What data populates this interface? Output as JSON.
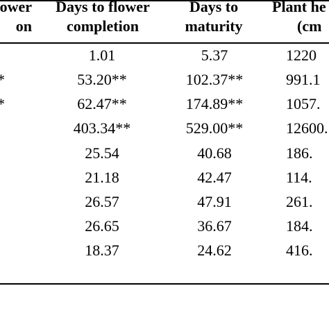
{
  "table": {
    "headers": [
      {
        "lines": [
          "ower",
          "on"
        ]
      },
      {
        "lines": [
          "Days to flower",
          "completion"
        ]
      },
      {
        "lines": [
          "Days to",
          "maturity"
        ]
      },
      {
        "lines": [
          "Plant he",
          "(cm"
        ]
      }
    ],
    "rows": [
      {
        "c0": "",
        "c1": "1.01",
        "c2": "5.37",
        "c3": "1220"
      },
      {
        "c0": "*",
        "c1": "53.20**",
        "c2": "102.37**",
        "c3": "991.1"
      },
      {
        "c0": "*",
        "c1": "62.47**",
        "c2": "174.89**",
        "c3": "1057."
      },
      {
        "c0": "",
        "c1": "403.34**",
        "c2": "529.00**",
        "c3": "12600."
      },
      {
        "c0": "",
        "c1": "25.54",
        "c2": "40.68",
        "c3": "186."
      },
      {
        "c0": "",
        "c1": "21.18",
        "c2": "42.47",
        "c3": "114."
      },
      {
        "c0": "",
        "c1": "26.57",
        "c2": "47.91",
        "c3": "261."
      },
      {
        "c0": "",
        "c1": "26.65",
        "c2": "36.67",
        "c3": "184."
      },
      {
        "c0": "",
        "c1": "18.37",
        "c2": "24.62",
        "c3": "416."
      }
    ]
  }
}
